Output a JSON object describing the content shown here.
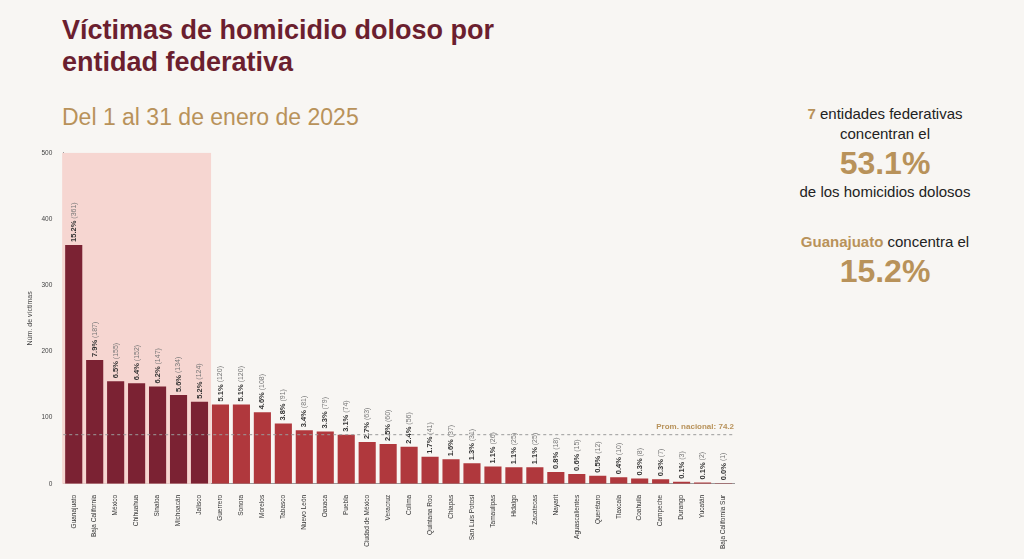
{
  "chart_data": {
    "type": "bar",
    "title": "Víctimas de homicidio doloso por entidad federativa",
    "subtitle": "Del 1 al 31 de enero de 2025",
    "y_label": "Núm. de víctimas",
    "categories": [
      "Guanajuato",
      "Baja California",
      "México",
      "Chihuahua",
      "Sinaloa",
      "Michoacán",
      "Jalisco",
      "Guerrero",
      "Sonora",
      "Morelos",
      "Tabasco",
      "Nuevo León",
      "Oaxaca",
      "Puebla",
      "Ciudad de México",
      "Veracruz",
      "Colima",
      "Quintana Roo",
      "Chiapas",
      "San Luis Potosí",
      "Tamaulipas",
      "Hidalgo",
      "Zacatecas",
      "Nayarit",
      "Aguascalientes",
      "Querétaro",
      "Tlaxcala",
      "Coahuila",
      "Campeche",
      "Durango",
      "Yucatán",
      "Baja California Sur"
    ],
    "values": [
      361,
      187,
      155,
      152,
      147,
      134,
      124,
      120,
      120,
      108,
      91,
      81,
      79,
      74,
      63,
      60,
      56,
      41,
      37,
      31,
      26,
      25,
      25,
      18,
      15,
      12,
      10,
      8,
      7,
      3,
      2,
      1
    ],
    "value_labels": [
      "15.2% (361)",
      "7.9% (187)",
      "6.5% (155)",
      "6.4% (152)",
      "6.2% (147)",
      "5.6% (134)",
      "5.2% (124)",
      "5.1% (120)",
      "5.1% (120)",
      "4.6% (108)",
      "3.8% (91)",
      "3.4% (81)",
      "3.3% (79)",
      "3.1% (74)",
      "2.7% (63)",
      "2.5% (60)",
      "2.4% (56)",
      "1.7% (41)",
      "1.6% (37)",
      "1.3% (31)",
      "1.1% (26)",
      "1.1% (25)",
      "1.1% (25)",
      "0.8% (18)",
      "0.6% (15)",
      "0.5% (12)",
      "0.4% (10)",
      "0.3% (8)",
      "0.3% (7)",
      "0.1% (3)",
      "0.1% (2)",
      "0.0% (1)"
    ],
    "colors": [
      "#7b2233",
      "#7b2233",
      "#7b2233",
      "#7b2233",
      "#7b2233",
      "#7b2233",
      "#7b2233",
      "#b0383d",
      "#b0383d",
      "#b0383d",
      "#b0383d",
      "#b0383d",
      "#b0383d",
      "#b0383d",
      "#b0383d",
      "#b0383d",
      "#b0383d",
      "#b0383d",
      "#b0383d",
      "#b0383d",
      "#b0383d",
      "#b0383d",
      "#b0383d",
      "#b0383d",
      "#b0383d",
      "#b0383d",
      "#b0383d",
      "#b0383d",
      "#b0383d",
      "#b0383d",
      "#b0383d",
      "#b0383d"
    ],
    "ylim": [
      0,
      500
    ],
    "yticks": [
      0,
      100,
      200,
      300,
      400,
      500
    ],
    "grid": false,
    "data_labels": true,
    "reference_lines": [
      {
        "value": 74.2,
        "label": "Prom. nacional: 74.2"
      }
    ],
    "annotations": [
      {
        "lines": [
          [
            "7",
            " entidades federativas"
          ],
          [
            "concentran el"
          ],
          [
            "53.1%"
          ],
          [
            "de los homicidios dolosos"
          ]
        ]
      },
      {
        "lines": [
          [
            "Guanajuato",
            " concentra el"
          ],
          [
            "15.2%"
          ]
        ]
      }
    ]
  }
}
